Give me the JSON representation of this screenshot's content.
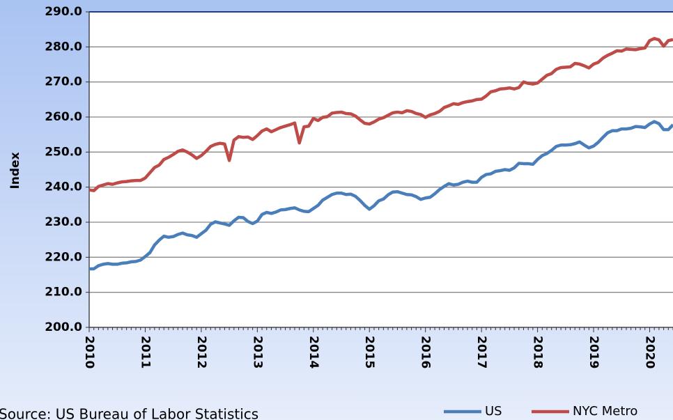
{
  "chart_data": {
    "type": "line",
    "y_label": "Index",
    "source": "Source: US Bureau of Labor Statistics",
    "categories": [
      "2010",
      null,
      null,
      null,
      null,
      null,
      null,
      null,
      null,
      null,
      null,
      null,
      "2011",
      null,
      null,
      null,
      null,
      null,
      null,
      null,
      null,
      null,
      null,
      null,
      "2012",
      null,
      null,
      null,
      null,
      null,
      null,
      null,
      null,
      null,
      null,
      null,
      "2013",
      null,
      null,
      null,
      null,
      null,
      null,
      null,
      null,
      null,
      null,
      null,
      "2014",
      null,
      null,
      null,
      null,
      null,
      null,
      null,
      null,
      null,
      null,
      null,
      "2015",
      null,
      null,
      null,
      null,
      null,
      null,
      null,
      null,
      null,
      null,
      null,
      "2016",
      null,
      null,
      null,
      null,
      null,
      null,
      null,
      null,
      null,
      null,
      null,
      "2017",
      null,
      null,
      null,
      null,
      null,
      null,
      null,
      null,
      null,
      null,
      null,
      "2018",
      null,
      null,
      null,
      null,
      null,
      null,
      null,
      null,
      null,
      null,
      null,
      "2019",
      null,
      null,
      null,
      null,
      null,
      null,
      null,
      null,
      null,
      null,
      null,
      "2020",
      null,
      null,
      null,
      null,
      null
    ],
    "series": [
      {
        "name": "US",
        "color": "#4a7ebb",
        "values": [
          216.7,
          216.7,
          217.6,
          218.0,
          218.2,
          218.0,
          218.0,
          218.3,
          218.4,
          218.7,
          218.8,
          219.2,
          220.2,
          221.3,
          223.5,
          224.9,
          226.0,
          225.7,
          225.9,
          226.5,
          226.9,
          226.4,
          226.2,
          225.7,
          226.7,
          227.7,
          229.4,
          230.1,
          229.8,
          229.5,
          229.1,
          230.4,
          231.4,
          231.3,
          230.2,
          229.6,
          230.3,
          232.2,
          232.8,
          232.5,
          232.9,
          233.5,
          233.6,
          233.9,
          234.1,
          233.5,
          233.1,
          233.0,
          233.9,
          234.8,
          236.3,
          237.1,
          237.9,
          238.3,
          238.3,
          237.9,
          238.0,
          237.4,
          236.2,
          234.8,
          233.7,
          234.7,
          236.1,
          236.6,
          237.8,
          238.6,
          238.7,
          238.3,
          237.9,
          237.8,
          237.3,
          236.5,
          236.9,
          237.1,
          238.1,
          239.3,
          240.2,
          241.0,
          240.6,
          240.8,
          241.4,
          241.7,
          241.4,
          241.4,
          242.8,
          243.6,
          243.8,
          244.5,
          244.7,
          245.0,
          244.8,
          245.5,
          246.8,
          246.7,
          246.7,
          246.5,
          247.9,
          249.0,
          249.6,
          250.5,
          251.6,
          252.0,
          252.0,
          252.1,
          252.4,
          252.9,
          252.0,
          251.2,
          251.7,
          252.8,
          254.2,
          255.5,
          256.1,
          256.1,
          256.6,
          256.6,
          256.8,
          257.3,
          257.2,
          257.0,
          258.0,
          258.7,
          258.1,
          256.4,
          256.4,
          257.8
        ]
      },
      {
        "name": "NYC Metro",
        "color": "#be4b48",
        "values": [
          239.2,
          239.0,
          240.2,
          240.6,
          241.0,
          240.8,
          241.2,
          241.5,
          241.6,
          241.8,
          241.9,
          241.9,
          242.6,
          244.1,
          245.6,
          246.3,
          247.9,
          248.5,
          249.3,
          250.2,
          250.6,
          250.0,
          249.2,
          248.2,
          249.0,
          250.2,
          251.6,
          252.2,
          252.5,
          252.3,
          247.6,
          253.4,
          254.4,
          254.2,
          254.3,
          253.6,
          254.7,
          256.0,
          256.6,
          255.8,
          256.4,
          257.0,
          257.4,
          257.8,
          258.3,
          252.6,
          257.2,
          257.4,
          259.6,
          259.0,
          259.9,
          260.1,
          261.1,
          261.3,
          261.4,
          261.0,
          260.9,
          260.3,
          259.2,
          258.2,
          258.0,
          258.6,
          259.4,
          259.8,
          260.5,
          261.2,
          261.4,
          261.2,
          261.8,
          261.6,
          261.0,
          260.7,
          259.9,
          260.6,
          261.0,
          261.6,
          262.7,
          263.2,
          263.8,
          263.6,
          264.1,
          264.4,
          264.6,
          265.0,
          265.1,
          266.0,
          267.2,
          267.5,
          268.0,
          268.1,
          268.3,
          268.0,
          268.4,
          270.0,
          269.6,
          269.4,
          269.7,
          270.8,
          271.9,
          272.4,
          273.6,
          274.1,
          274.2,
          274.3,
          275.3,
          275.1,
          274.6,
          274.0,
          275.1,
          275.6,
          276.8,
          277.6,
          278.2,
          278.9,
          278.8,
          279.4,
          279.3,
          279.2,
          279.5,
          279.7,
          281.8,
          282.4,
          282.0,
          280.2,
          281.8,
          282.1
        ]
      }
    ],
    "ylim": [
      200,
      290
    ],
    "yticks": [
      {
        "value": 200,
        "label": "200.0"
      },
      {
        "value": 210,
        "label": "210.0"
      },
      {
        "value": 220,
        "label": "220.0"
      },
      {
        "value": 230,
        "label": "230.0"
      },
      {
        "value": 240,
        "label": "240.0"
      },
      {
        "value": 250,
        "label": "250.0"
      },
      {
        "value": 260,
        "label": "260.0"
      },
      {
        "value": 270,
        "label": "270.0"
      },
      {
        "value": 280,
        "label": "280.0"
      },
      {
        "value": 290,
        "label": "290.0"
      }
    ],
    "grid": true,
    "legend": "bottom"
  }
}
